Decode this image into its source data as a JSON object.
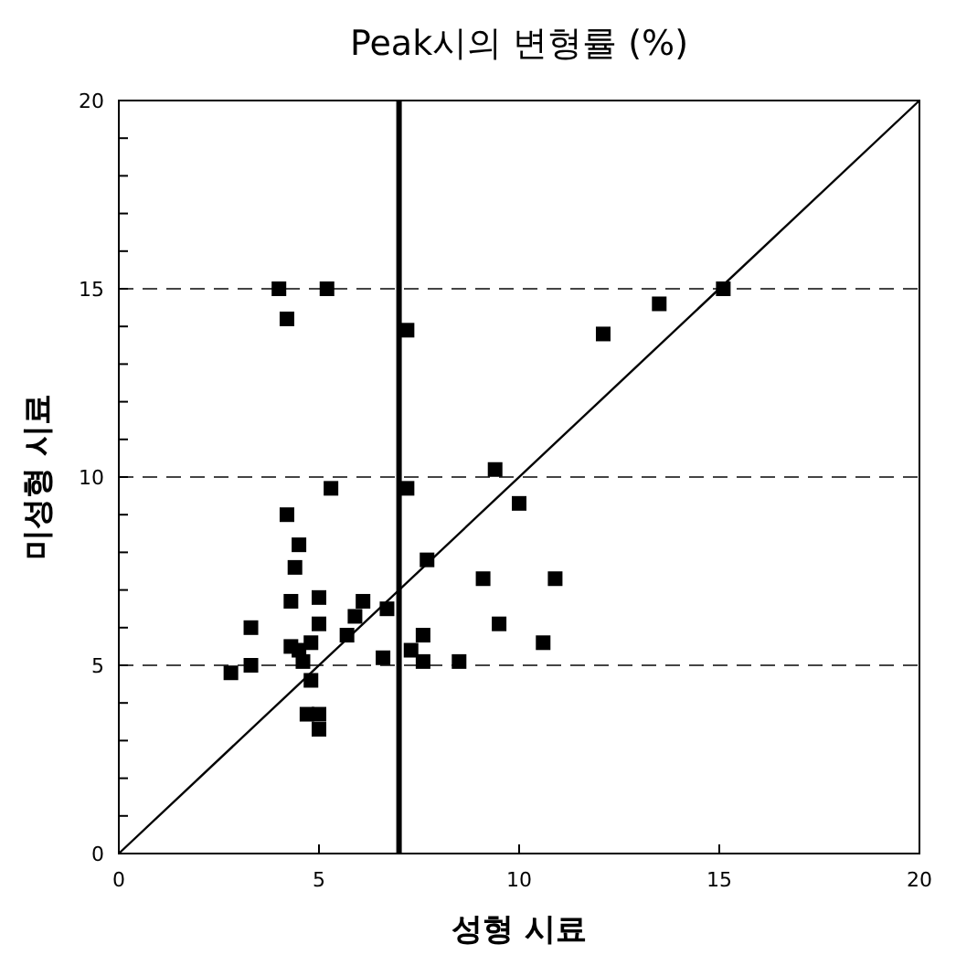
{
  "chart_data": {
    "type": "scatter",
    "title": "Peak시의 변형률 (%)",
    "xlabel": "성형 시료",
    "ylabel": "미성형 시료",
    "xlim": [
      0,
      20
    ],
    "ylim": [
      0,
      20
    ],
    "xticks": [
      0,
      5,
      10,
      15,
      20
    ],
    "yticks": [
      0,
      {
        "value": 1,
        "label": null
      },
      {
        "value": 2,
        "label": null
      },
      {
        "value": 3,
        "label": null
      },
      {
        "value": 4,
        "label": null
      },
      5,
      {
        "value": 6,
        "label": null
      },
      {
        "value": 7,
        "label": null
      },
      {
        "value": 8,
        "label": null
      },
      {
        "value": 9,
        "label": null
      },
      10,
      {
        "value": 11,
        "label": null
      },
      {
        "value": 12,
        "label": null
      },
      {
        "value": 13,
        "label": null
      },
      {
        "value": 14,
        "label": null
      },
      15,
      {
        "value": 16,
        "label": null
      },
      {
        "value": 17,
        "label": null
      },
      {
        "value": 18,
        "label": null
      },
      {
        "value": 19,
        "label": null
      },
      20
    ],
    "grid": "y",
    "marker": "square",
    "ref_lines": [
      {
        "axis": "x",
        "value": 7,
        "color": "#000000",
        "line_style": "solid"
      }
    ],
    "series": [
      {
        "color": "#000000",
        "x": [
          4.0,
          5.2,
          4.2,
          7.2,
          5.3,
          7.2,
          9.4,
          10.0,
          4.2,
          4.5,
          4.4,
          5.0,
          4.3,
          6.1,
          5.9,
          6.7,
          7.7,
          9.1,
          9.5,
          3.3,
          5.0,
          5.7,
          4.8,
          4.3,
          4.5,
          4.6,
          6.6,
          7.3,
          7.6,
          7.6,
          8.5,
          3.3,
          2.8,
          4.8,
          4.7,
          5.0,
          5.0,
          13.5,
          15.1,
          12.1,
          10.9,
          10.6
        ],
        "values": [
          15.0,
          15.0,
          14.2,
          13.9,
          9.7,
          9.7,
          10.2,
          9.3,
          9.0,
          8.2,
          7.6,
          6.8,
          6.7,
          6.7,
          6.3,
          6.5,
          7.8,
          7.3,
          6.1,
          6.0,
          6.1,
          5.8,
          5.6,
          5.5,
          5.4,
          5.1,
          5.2,
          5.4,
          5.8,
          5.1,
          5.1,
          5.0,
          4.8,
          4.6,
          3.7,
          3.7,
          3.3,
          14.6,
          15.0,
          13.8,
          7.3,
          5.6
        ]
      },
      {
        "type": "line",
        "color": "#000000",
        "line_style": "solid",
        "marker": "none",
        "x": [
          0,
          20
        ],
        "values": [
          0,
          20
        ]
      }
    ]
  }
}
